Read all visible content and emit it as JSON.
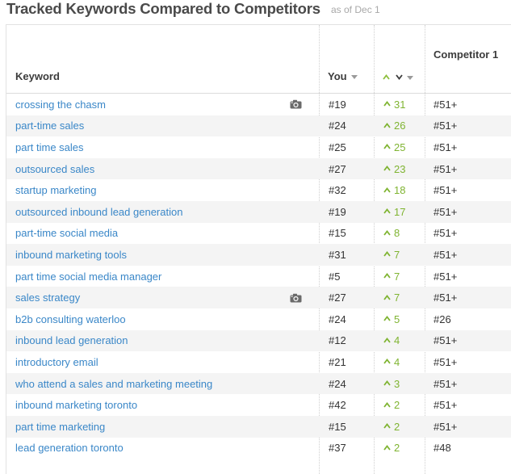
{
  "page": {
    "title": "Tracked Keywords Compared to Competitors",
    "as_of": "as of Dec 1"
  },
  "table": {
    "columns": {
      "keyword": "Keyword",
      "you": "You",
      "competitor_1": "Competitor 1"
    },
    "rows": [
      {
        "keyword": "crossing the chasm",
        "you": "#19",
        "change": "31",
        "competitor_1": "#51+",
        "snapshot": true
      },
      {
        "keyword": "part-time sales",
        "you": "#24",
        "change": "26",
        "competitor_1": "#51+",
        "snapshot": false
      },
      {
        "keyword": "part time sales",
        "you": "#25",
        "change": "25",
        "competitor_1": "#51+",
        "snapshot": false
      },
      {
        "keyword": "outsourced sales",
        "you": "#27",
        "change": "23",
        "competitor_1": "#51+",
        "snapshot": false
      },
      {
        "keyword": "startup marketing",
        "you": "#32",
        "change": "18",
        "competitor_1": "#51+",
        "snapshot": false
      },
      {
        "keyword": "outsourced inbound lead generation",
        "you": "#19",
        "change": "17",
        "competitor_1": "#51+",
        "snapshot": false
      },
      {
        "keyword": "part-time social media",
        "you": "#15",
        "change": "8",
        "competitor_1": "#51+",
        "snapshot": false
      },
      {
        "keyword": "inbound marketing tools",
        "you": "#31",
        "change": "7",
        "competitor_1": "#51+",
        "snapshot": false
      },
      {
        "keyword": "part time social media manager",
        "you": "#5",
        "change": "7",
        "competitor_1": "#51+",
        "snapshot": false
      },
      {
        "keyword": "sales strategy",
        "you": "#27",
        "change": "7",
        "competitor_1": "#51+",
        "snapshot": true
      },
      {
        "keyword": "b2b consulting waterloo",
        "you": "#24",
        "change": "5",
        "competitor_1": "#26",
        "snapshot": false
      },
      {
        "keyword": "inbound lead generation",
        "you": "#12",
        "change": "4",
        "competitor_1": "#51+",
        "snapshot": false
      },
      {
        "keyword": "introductory email",
        "you": "#21",
        "change": "4",
        "competitor_1": "#51+",
        "snapshot": false
      },
      {
        "keyword": "who attend a sales and marketing meeting",
        "you": "#24",
        "change": "3",
        "competitor_1": "#51+",
        "snapshot": false
      },
      {
        "keyword": "inbound marketing toronto",
        "you": "#42",
        "change": "2",
        "competitor_1": "#51+",
        "snapshot": false
      },
      {
        "keyword": "part time marketing",
        "you": "#15",
        "change": "2",
        "competitor_1": "#51+",
        "snapshot": false
      },
      {
        "keyword": "lead generation toronto",
        "you": "#37",
        "change": "2",
        "competitor_1": "#48",
        "snapshot": false
      }
    ]
  },
  "icons": {
    "up_arrow": "chevron-up-icon",
    "down_arrow": "chevron-down-icon",
    "sort": "caret-down-icon",
    "snapshot": "camera-icon"
  },
  "colors": {
    "link": "#3a87c8",
    "positive_change": "#7fb431",
    "row_alt": "#f4f4f4"
  }
}
